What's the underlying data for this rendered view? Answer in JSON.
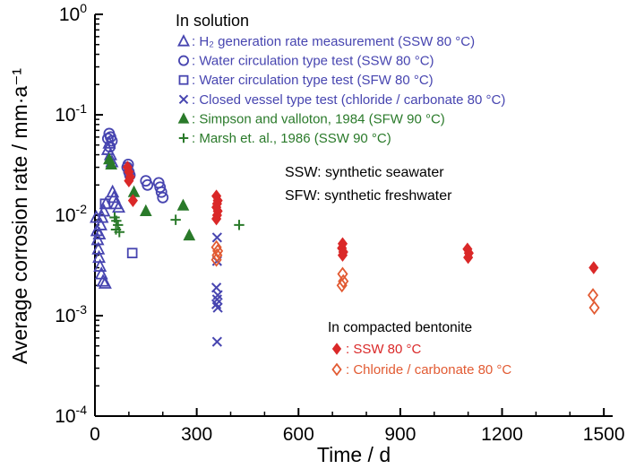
{
  "chart_data": {
    "type": "scatter",
    "title": "",
    "xlabel": "Time / d",
    "ylabel": "Average corrosion rate / mm·a⁻¹",
    "x_range": [
      0,
      1526
    ],
    "x_ticks": [
      0,
      300,
      600,
      900,
      1200,
      1500
    ],
    "x_minor_step": 100,
    "y_scale": "log",
    "y_range": [
      0.0001,
      1
    ],
    "y_tick_exponents": [
      0,
      -1,
      -2,
      -3,
      -4
    ],
    "grid": false,
    "legend_position": "inside top-left / inside bottom-right",
    "annotations": [
      "SSW: synthetic seawater",
      "SFW: synthetic freshwater"
    ],
    "colors": {
      "solution_blue": "#4745b0",
      "solution_green": "#2a7a2a",
      "bentonite_red": "#da2828",
      "bentonite_orange": "#e25b33",
      "axis": "#000000"
    },
    "legends": [
      {
        "id": "solution",
        "title": "In solution",
        "series_indexes": [
          0,
          1,
          2,
          3,
          4,
          5
        ]
      },
      {
        "id": "bentonite",
        "title": "In compacted bentonite",
        "series_indexes": [
          6,
          7
        ]
      }
    ],
    "series": [
      {
        "name": "h2-generation",
        "label": "H₂ generation rate measurement (SSW 80 °C)",
        "marker": "triangle-open",
        "color": "#4745b0",
        "points": [
          [
            4,
            0.0095
          ],
          [
            6,
            0.007
          ],
          [
            8,
            0.0057
          ],
          [
            10,
            0.0046
          ],
          [
            12,
            0.0038
          ],
          [
            15,
            0.0031
          ],
          [
            19,
            0.0026
          ],
          [
            24,
            0.0022
          ],
          [
            30,
            0.0021
          ],
          [
            13,
            0.0065
          ],
          [
            17,
            0.008
          ],
          [
            21,
            0.0095
          ],
          [
            26,
            0.011
          ],
          [
            32,
            0.013
          ],
          [
            38,
            0.045
          ],
          [
            42,
            0.052
          ],
          [
            46,
            0.04
          ],
          [
            50,
            0.034
          ],
          [
            52,
            0.017
          ],
          [
            56,
            0.015
          ],
          [
            62,
            0.013
          ],
          [
            70,
            0.012
          ]
        ]
      },
      {
        "name": "water-circulation-ssw",
        "label": "Water circulation type test (SSW 80 °C)",
        "marker": "circle-open",
        "color": "#4745b0",
        "points": [
          [
            38,
            0.058
          ],
          [
            42,
            0.065
          ],
          [
            46,
            0.06
          ],
          [
            50,
            0.055
          ],
          [
            44,
            0.048
          ],
          [
            95,
            0.03
          ],
          [
            100,
            0.027
          ],
          [
            103,
            0.025
          ],
          [
            98,
            0.032
          ],
          [
            150,
            0.022
          ],
          [
            155,
            0.02
          ],
          [
            188,
            0.021
          ],
          [
            192,
            0.019
          ],
          [
            196,
            0.017
          ],
          [
            200,
            0.015
          ]
        ]
      },
      {
        "name": "water-circulation-sfw",
        "label": "Water circulation type test (SFW 80 °C)",
        "marker": "square-open",
        "color": "#4745b0",
        "points": [
          [
            30,
            0.013
          ],
          [
            110,
            0.0042
          ]
        ]
      },
      {
        "name": "closed-vessel",
        "label": "Closed vessel type test (chloride / carbonate 80 °C)",
        "marker": "x-cross",
        "color": "#4745b0",
        "points": [
          [
            360,
            0.006
          ],
          [
            360,
            0.0035
          ],
          [
            358,
            0.0019
          ],
          [
            362,
            0.0016
          ],
          [
            360,
            0.00145
          ],
          [
            358,
            0.0013
          ],
          [
            362,
            0.0012
          ],
          [
            360,
            0.00055
          ]
        ]
      },
      {
        "name": "simpson-valloton",
        "label": "Simpson and valloton, 1984 (SFW 90 °C)",
        "marker": "triangle-filled",
        "color": "#2a7a2a",
        "points": [
          [
            42,
            0.036
          ],
          [
            48,
            0.032
          ],
          [
            115,
            0.017
          ],
          [
            150,
            0.011
          ],
          [
            260,
            0.0125
          ],
          [
            278,
            0.0063
          ]
        ]
      },
      {
        "name": "marsh",
        "label": "Marsh et. al., 1986 (SSW 90 °C)",
        "marker": "plus",
        "color": "#2a7a2a",
        "points": [
          [
            58,
            0.0095
          ],
          [
            63,
            0.0088
          ],
          [
            68,
            0.008
          ],
          [
            62,
            0.0072
          ],
          [
            72,
            0.0068
          ],
          [
            238,
            0.009
          ],
          [
            425,
            0.008
          ]
        ]
      },
      {
        "name": "bentonite-ssw",
        "label": "SSW 80 °C",
        "marker": "diamond-filled",
        "color": "#da2828",
        "points": [
          [
            96,
            0.03
          ],
          [
            100,
            0.027
          ],
          [
            104,
            0.024
          ],
          [
            100,
            0.022
          ],
          [
            112,
            0.014
          ],
          [
            358,
            0.0155
          ],
          [
            362,
            0.014
          ],
          [
            360,
            0.013
          ],
          [
            358,
            0.012
          ],
          [
            362,
            0.011
          ],
          [
            360,
            0.01
          ],
          [
            358,
            0.0092
          ],
          [
            730,
            0.0052
          ],
          [
            728,
            0.0047
          ],
          [
            732,
            0.0043
          ],
          [
            730,
            0.004
          ],
          [
            1098,
            0.0046
          ],
          [
            1102,
            0.0042
          ],
          [
            1100,
            0.0038
          ],
          [
            1470,
            0.003
          ]
        ]
      },
      {
        "name": "bentonite-chloride-carbonate",
        "label": "Chloride / carbonate 80 °C",
        "marker": "diamond-open",
        "color": "#e25b33",
        "points": [
          [
            358,
            0.0048
          ],
          [
            362,
            0.0044
          ],
          [
            360,
            0.004
          ],
          [
            358,
            0.0036
          ],
          [
            730,
            0.0026
          ],
          [
            732,
            0.0022
          ],
          [
            728,
            0.002
          ],
          [
            1468,
            0.0016
          ],
          [
            1472,
            0.0012
          ]
        ]
      }
    ]
  }
}
